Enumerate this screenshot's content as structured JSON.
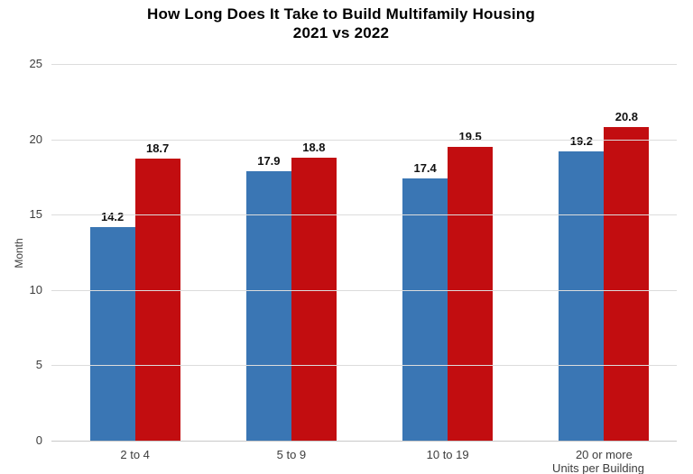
{
  "page": {
    "background": "#ffffff"
  },
  "chart_data": {
    "type": "bar",
    "title": "How Long Does It Take to Build Multifamily Housing",
    "subtitle": "2021 vs 2022",
    "categories": [
      "2 to 4",
      "5 to 9",
      "10 to 19",
      "20 or more"
    ],
    "series": [
      {
        "name": "2021",
        "color": "#3a76b4",
        "values": [
          14.2,
          17.9,
          17.4,
          19.2
        ]
      },
      {
        "name": "2022",
        "color": "#c20d10",
        "values": [
          18.7,
          18.8,
          19.5,
          20.8
        ]
      }
    ],
    "xlabel": "Units per Building",
    "ylabel": "Month",
    "ylim": [
      0,
      25
    ],
    "yticks": [
      0,
      5,
      10,
      15,
      20,
      25
    ],
    "grid": true,
    "legend_position": "none",
    "value_labels_visible": true,
    "value_label_decimals": 1,
    "colors": {
      "gridline": "#dcdcdc",
      "axis_line": "#c8c8c8",
      "tick_text": "#3d3d3d",
      "title_text": "#000000",
      "value_label_text": "#111111"
    }
  }
}
